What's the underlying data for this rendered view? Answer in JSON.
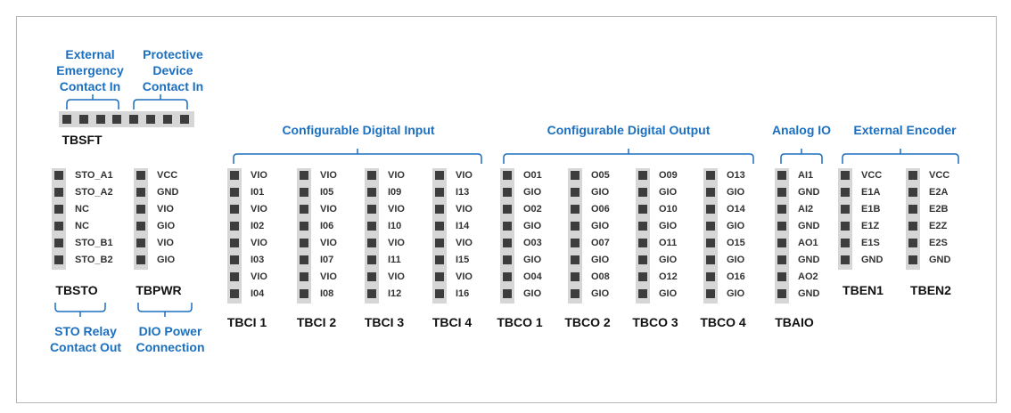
{
  "accent_color": "#1b6fbf",
  "groups": {
    "emergency": "External\nEmergency\nContact In",
    "protective": "Protective\nDevice\nContact In",
    "digital_input": "Configurable Digital Input",
    "digital_output": "Configurable Digital Output",
    "analog": "Analog IO",
    "encoder": "External Encoder",
    "sto_relay": "STO Relay\nContact Out",
    "dio_power": "DIO Power\nConnection"
  },
  "tbsft": {
    "name": "TBSFT",
    "pins": 8
  },
  "connectors": [
    {
      "name": "TBSTO",
      "pins": [
        "STO_A1",
        "STO_A2",
        "NC",
        "NC",
        "STO_B1",
        "STO_B2"
      ]
    },
    {
      "name": "TBPWR",
      "pins": [
        "VCC",
        "GND",
        "VIO",
        "GIO",
        "VIO",
        "GIO"
      ]
    },
    {
      "name": "TBCI 1",
      "pins": [
        "VIO",
        "I01",
        "VIO",
        "I02",
        "VIO",
        "I03",
        "VIO",
        "I04"
      ]
    },
    {
      "name": "TBCI 2",
      "pins": [
        "VIO",
        "I05",
        "VIO",
        "I06",
        "VIO",
        "I07",
        "VIO",
        "I08"
      ]
    },
    {
      "name": "TBCI 3",
      "pins": [
        "VIO",
        "I09",
        "VIO",
        "I10",
        "VIO",
        "I11",
        "VIO",
        "I12"
      ]
    },
    {
      "name": "TBCI 4",
      "pins": [
        "VIO",
        "I13",
        "VIO",
        "I14",
        "VIO",
        "I15",
        "VIO",
        "I16"
      ]
    },
    {
      "name": "TBCO 1",
      "pins": [
        "O01",
        "GIO",
        "O02",
        "GIO",
        "O03",
        "GIO",
        "O04",
        "GIO"
      ]
    },
    {
      "name": "TBCO 2",
      "pins": [
        "O05",
        "GIO",
        "O06",
        "GIO",
        "O07",
        "GIO",
        "O08",
        "GIO"
      ]
    },
    {
      "name": "TBCO 3",
      "pins": [
        "O09",
        "GIO",
        "O10",
        "GIO",
        "O11",
        "GIO",
        "O12",
        "GIO"
      ]
    },
    {
      "name": "TBCO 4",
      "pins": [
        "O13",
        "GIO",
        "O14",
        "GIO",
        "O15",
        "GIO",
        "O16",
        "GIO"
      ]
    },
    {
      "name": "TBAIO",
      "pins": [
        "AI1",
        "GND",
        "AI2",
        "GND",
        "AO1",
        "GND",
        "AO2",
        "GND"
      ]
    },
    {
      "name": "TBEN1",
      "pins": [
        "VCC",
        "E1A",
        "E1B",
        "E1Z",
        "E1S",
        "GND"
      ]
    },
    {
      "name": "TBEN2",
      "pins": [
        "VCC",
        "E2A",
        "E2B",
        "E2Z",
        "E2S",
        "GND"
      ]
    }
  ]
}
